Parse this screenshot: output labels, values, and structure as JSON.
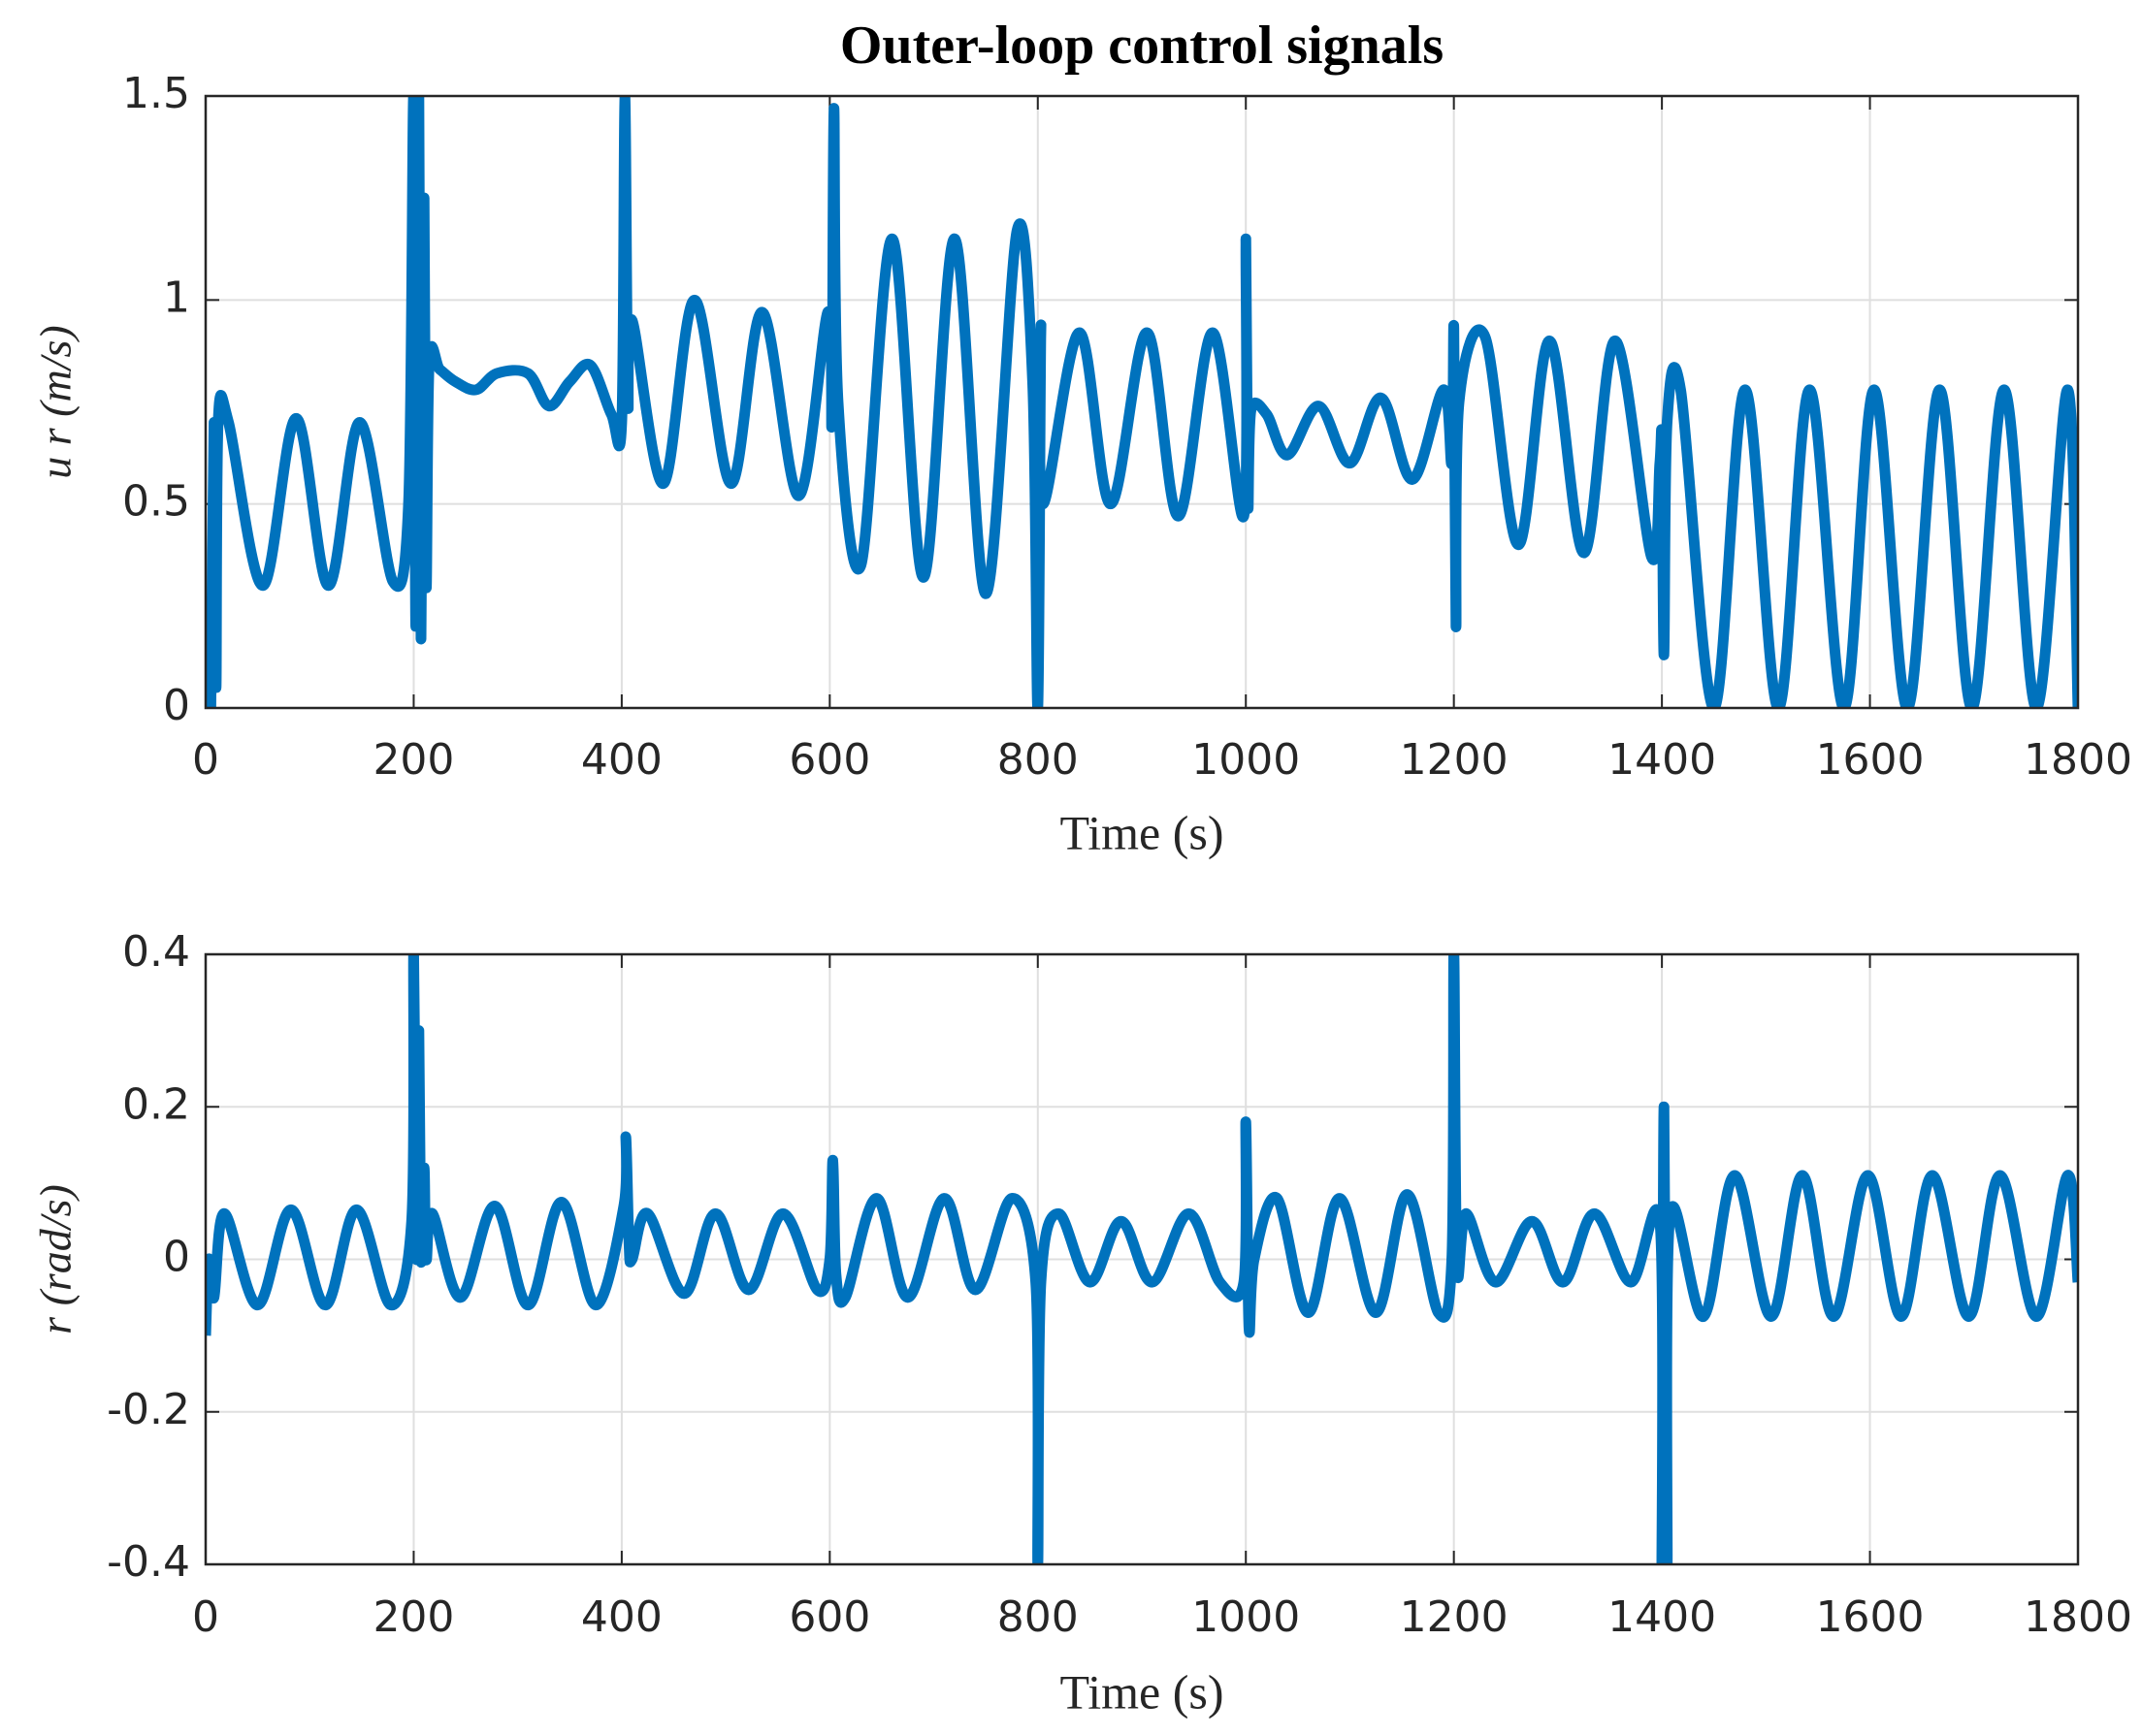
{
  "chart_data": [
    {
      "type": "line",
      "title": "Outer-loop control signals",
      "xlabel": "Time (s)",
      "ylabel": "u r (m/s)",
      "xlim": [
        0,
        1800
      ],
      "ylim": [
        0,
        1.5
      ],
      "xticks": [
        0,
        200,
        400,
        600,
        800,
        1000,
        1200,
        1400,
        1600,
        1800
      ],
      "yticks": [
        0,
        0.5,
        1,
        1.5
      ],
      "grid": true,
      "x": [
        0,
        3,
        5,
        8,
        10,
        12,
        22,
        55,
        87,
        118,
        148,
        180,
        195,
        200,
        202,
        205,
        207,
        210,
        212,
        215,
        225,
        240,
        260,
        280,
        310,
        330,
        350,
        370,
        390,
        400,
        403,
        406,
        410,
        440,
        470,
        505,
        535,
        570,
        598,
        602,
        604,
        608,
        630,
        660,
        690,
        720,
        750,
        780,
        795,
        800,
        803,
        805,
        840,
        870,
        905,
        935,
        968,
        998,
        1000,
        1002,
        1005,
        1020,
        1040,
        1070,
        1100,
        1130,
        1160,
        1190,
        1198,
        1200,
        1202,
        1205,
        1230,
        1262,
        1292,
        1325,
        1355,
        1390,
        1398,
        1400,
        1402,
        1405,
        1418,
        1450,
        1480,
        1512,
        1542,
        1575,
        1604,
        1636,
        1667,
        1698,
        1729,
        1760,
        1790,
        1800
      ],
      "series": [
        {
          "name": "u_r",
          "color": "#0072bd",
          "values": [
            0,
            0.05,
            0,
            0.7,
            0.05,
            0.7,
            0.7,
            0.3,
            0.71,
            0.3,
            0.7,
            0.31,
            0.5,
            1.5,
            0.2,
            1.5,
            0.17,
            1.25,
            0.3,
            0.85,
            0.83,
            0.8,
            0.78,
            0.82,
            0.82,
            0.74,
            0.8,
            0.84,
            0.72,
            0.7,
            1.5,
            0.75,
            0.95,
            0.55,
            1.0,
            0.55,
            0.97,
            0.52,
            0.97,
            0.7,
            1.47,
            0.75,
            0.35,
            1.15,
            0.32,
            1.15,
            0.28,
            1.17,
            0.8,
            0,
            0.93,
            0.5,
            0.92,
            0.5,
            0.92,
            0.47,
            0.92,
            0.47,
            1.15,
            0.5,
            0.73,
            0.72,
            0.62,
            0.74,
            0.6,
            0.76,
            0.56,
            0.78,
            0.6,
            0.93,
            0.2,
            0.75,
            0.91,
            0.4,
            0.9,
            0.38,
            0.9,
            0.37,
            0.6,
            0.65,
            0.13,
            0.7,
            0.78,
            0,
            0.78,
            0,
            0.78,
            0,
            0.78,
            0,
            0.78,
            0,
            0.78,
            0,
            0.78,
            0
          ]
        }
      ]
    },
    {
      "type": "line",
      "xlabel": "Time (s)",
      "ylabel": "r (rad/s)",
      "xlim": [
        0,
        1800
      ],
      "ylim": [
        -0.4,
        0.4
      ],
      "xticks": [
        0,
        200,
        400,
        600,
        800,
        1000,
        1200,
        1400,
        1600,
        1800
      ],
      "yticks": [
        -0.4,
        -0.2,
        0,
        0.2,
        0.4
      ],
      "grid": true,
      "x": [
        0,
        3,
        8,
        18,
        50,
        82,
        115,
        145,
        178,
        198,
        200,
        203,
        205,
        207,
        210,
        212,
        218,
        245,
        278,
        310,
        342,
        375,
        402,
        404,
        407,
        410,
        425,
        460,
        490,
        522,
        555,
        588,
        600,
        603,
        606,
        615,
        645,
        675,
        710,
        740,
        775,
        798,
        800,
        803,
        820,
        850,
        880,
        910,
        945,
        975,
        998,
        1000,
        1003,
        1008,
        1030,
        1060,
        1090,
        1125,
        1155,
        1185,
        1198,
        1200,
        1203,
        1212,
        1240,
        1275,
        1305,
        1335,
        1370,
        1398,
        1400,
        1402,
        1405,
        1408,
        1440,
        1470,
        1505,
        1535,
        1565,
        1598,
        1630,
        1660,
        1695,
        1725,
        1760,
        1790,
        1800
      ],
      "series": [
        {
          "name": "r",
          "color": "#0072bd",
          "values": [
            -0.1,
            0,
            -0.05,
            0.06,
            -0.06,
            0.065,
            -0.06,
            0.065,
            -0.06,
            0.05,
            0.4,
            0,
            0.3,
            0,
            0.12,
            0,
            0.06,
            -0.05,
            0.07,
            -0.06,
            0.075,
            -0.06,
            0.07,
            0.16,
            0.02,
            0,
            0.06,
            -0.045,
            0.06,
            -0.04,
            0.06,
            -0.04,
            0,
            0.13,
            -0.02,
            -0.05,
            0.08,
            -0.05,
            0.08,
            -0.04,
            0.08,
            -0.03,
            -0.4,
            -0.03,
            0.06,
            -0.03,
            0.05,
            -0.03,
            0.06,
            -0.03,
            -0.03,
            0.18,
            -0.09,
            0,
            0.08,
            -0.07,
            0.08,
            -0.07,
            0.085,
            -0.07,
            0,
            0.4,
            -0.01,
            0.06,
            -0.03,
            0.05,
            -0.03,
            0.06,
            -0.03,
            0.05,
            -0.4,
            0.2,
            -0.4,
            0.06,
            -0.075,
            0.11,
            -0.075,
            0.11,
            -0.075,
            0.11,
            -0.075,
            0.11,
            -0.075,
            0.11,
            -0.075,
            0.11,
            -0.03
          ]
        }
      ]
    }
  ]
}
